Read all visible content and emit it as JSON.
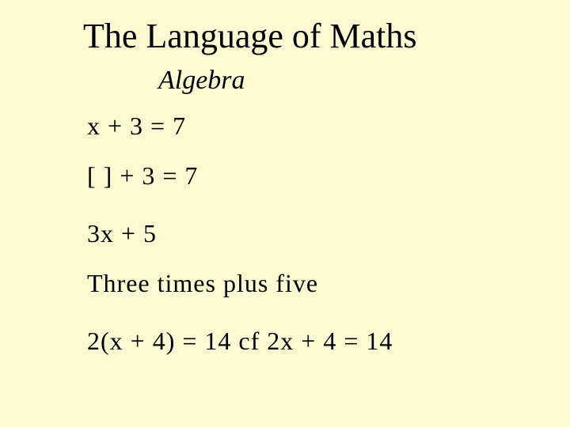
{
  "slide": {
    "title": "The Language of Maths",
    "subtitle": "Algebra",
    "lines": [
      "x + 3 = 7",
      "[  ] + 3 = 7",
      "3x + 5",
      "Three times plus five",
      "2(x + 4) = 14  cf  2x + 4 = 14"
    ],
    "background_color": "#fdfad1",
    "text_color": "#000000",
    "title_fontsize": 44,
    "subtitle_fontsize": 34,
    "line_fontsize": 32,
    "font_family": "Comic Sans MS"
  }
}
